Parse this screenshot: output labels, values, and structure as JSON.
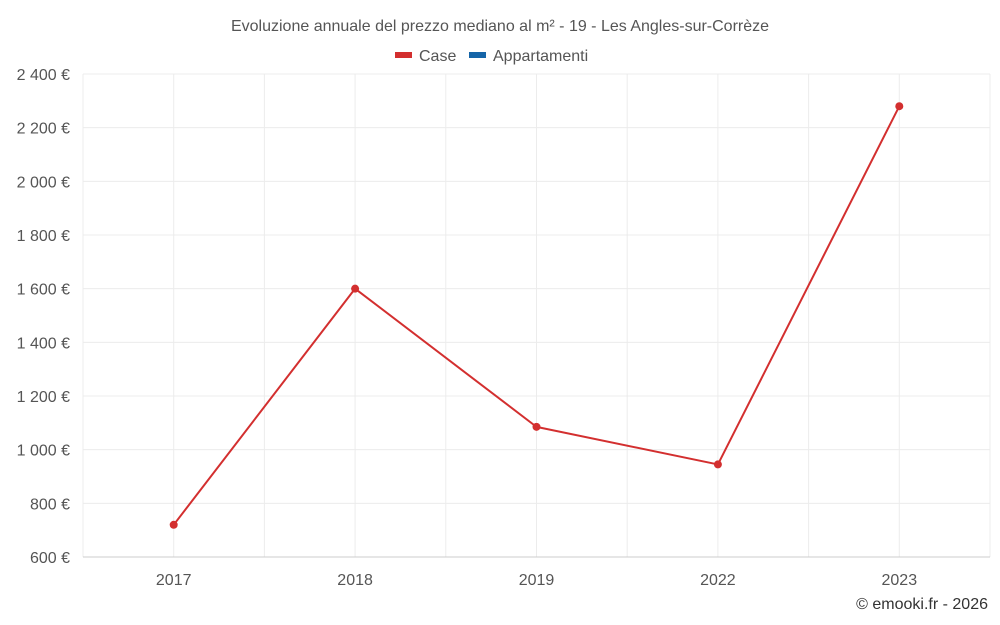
{
  "chart_data": {
    "type": "line",
    "title": "Evoluzione annuale del prezzo mediano al m² - 19 - Les Angles-sur-Corrèze",
    "categories": [
      "2017",
      "2018",
      "2019",
      "2022",
      "2023"
    ],
    "series": [
      {
        "name": "Case",
        "color": "#d32f2f",
        "values": [
          720,
          1600,
          1085,
          945,
          2280
        ]
      },
      {
        "name": "Appartamenti",
        "color": "#1565a8",
        "values": [
          null,
          null,
          null,
          null,
          null
        ]
      }
    ],
    "ylim": [
      600,
      2400
    ],
    "yticks": [
      600,
      800,
      1000,
      1200,
      1400,
      1600,
      1800,
      2000,
      2200,
      2400
    ],
    "ytick_labels": [
      "600 €",
      "800 €",
      "1 000 €",
      "1 200 €",
      "1 400 €",
      "1 600 €",
      "1 800 €",
      "2 000 €",
      "2 200 €",
      "2 400 €"
    ],
    "xlabel": "",
    "ylabel": "",
    "grid": true,
    "legend_position": "top-center",
    "credit": "© emooki.fr - 2026"
  }
}
